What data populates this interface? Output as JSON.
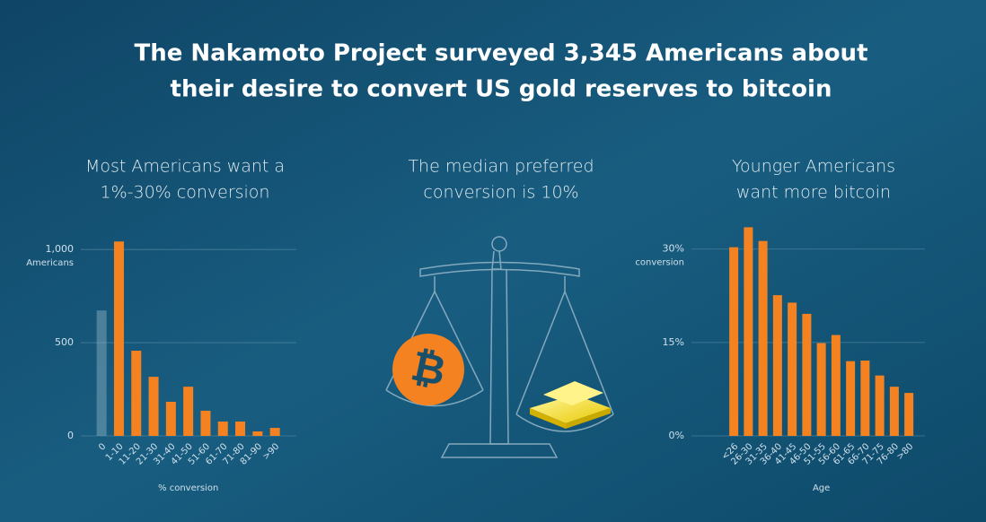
{
  "title": [
    "The Nakamoto Project surveyed 3,345 Americans about",
    "their desire to convert US gold reserves to bitcoin"
  ],
  "center_text": [
    "The median preferred",
    "conversion is 10%"
  ],
  "chart_data": [
    {
      "type": "bar",
      "title": [
        "Most Americans want a",
        "1%-30% conversion"
      ],
      "categories": [
        "0",
        "1-10",
        "11-20",
        "21-30",
        "31-40",
        "41-50",
        "51-60",
        "61-70",
        "71-80",
        "81-90",
        ">90"
      ],
      "values": [
        673,
        1043,
        457,
        317,
        183,
        264,
        135,
        77,
        77,
        24,
        43
      ],
      "colors": [
        "#8fb3c4",
        "#f58220",
        "#f58220",
        "#f58220",
        "#f58220",
        "#f58220",
        "#f58220",
        "#f58220",
        "#f58220",
        "#f58220",
        "#f58220"
      ],
      "ylim": [
        0,
        1150
      ],
      "yticks": [
        0,
        500,
        {
          "value": 1000,
          "label": "1,000"
        }
      ],
      "ylabel": "Americans",
      "xlabel": "% conversion",
      "grid": true
    },
    {
      "type": "bar",
      "title": [
        "Younger Americans",
        "want more bitcoin"
      ],
      "categories": [
        "<26",
        "26-30",
        "31-35",
        "36-40",
        "41-45",
        "46-50",
        "51-55",
        "56-60",
        "61-65",
        "66-70",
        "71-75",
        "76-80",
        ">80"
      ],
      "values": [
        30.3,
        33.5,
        31.3,
        22.6,
        21.4,
        19.6,
        14.9,
        16.2,
        12.0,
        12.1,
        9.7,
        7.9,
        6.9
      ],
      "color": "#f58220",
      "ylim": [
        0,
        35
      ],
      "yticks": [
        {
          "value": 0,
          "label": "0%"
        },
        {
          "value": 15,
          "label": "15%"
        },
        {
          "value": 30,
          "label": "30%"
        }
      ],
      "ylabel": "conversion",
      "xlabel": "Age",
      "grid": true
    }
  ]
}
